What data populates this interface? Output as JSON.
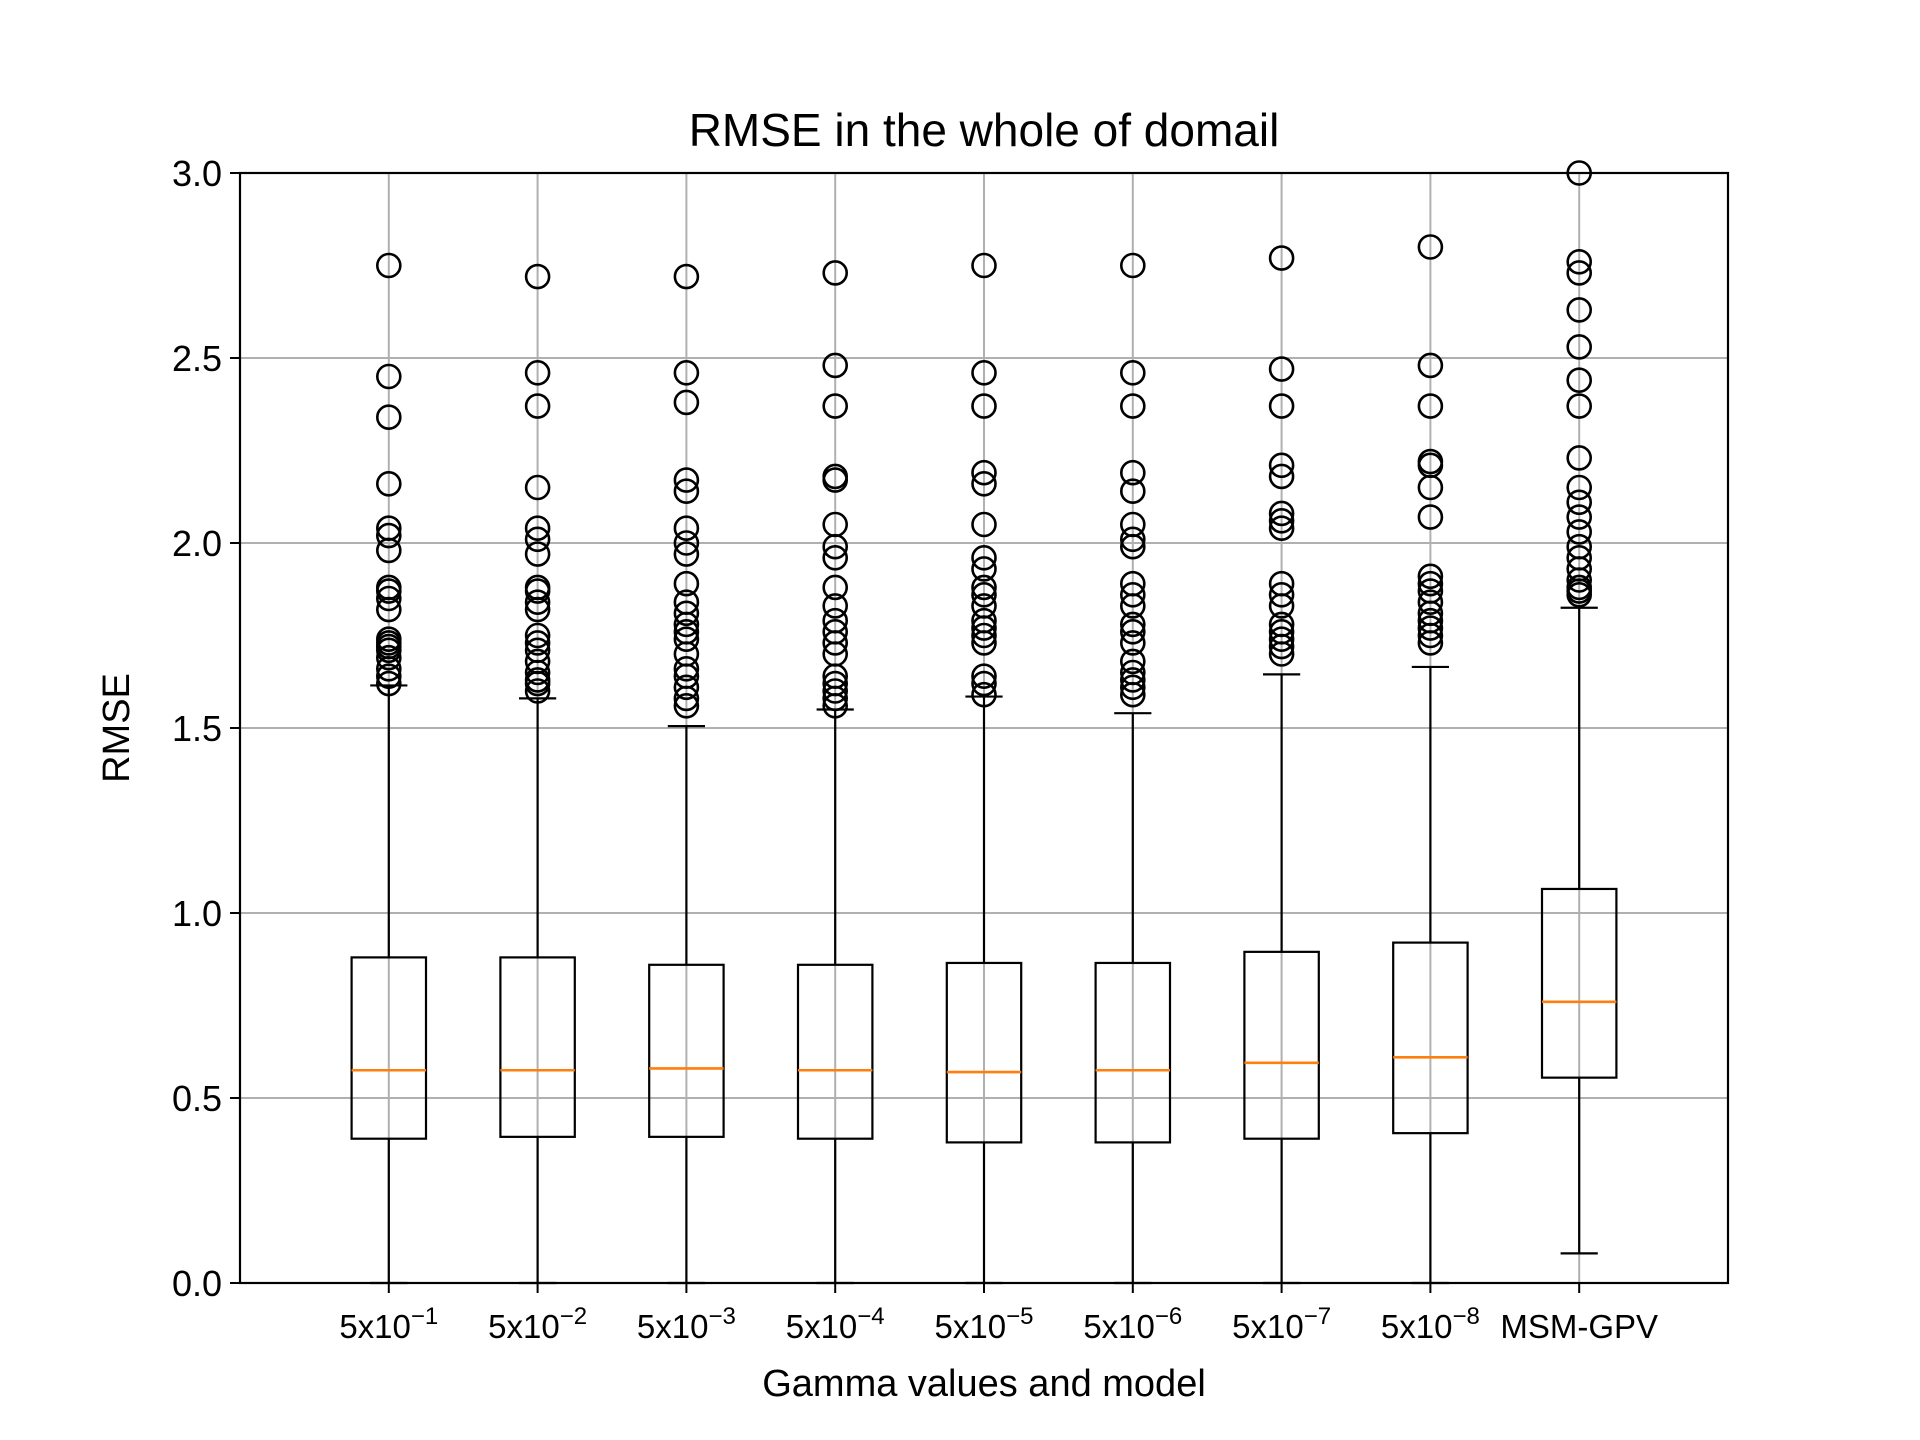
{
  "chart_data": {
    "type": "boxplot",
    "title": "RMSE in the whole of domail",
    "xlabel": "Gamma values and model",
    "ylabel": "RMSE",
    "ylim": [
      0.0,
      3.0
    ],
    "yticks": [
      "0.0",
      "0.5",
      "1.0",
      "1.5",
      "2.0",
      "2.5",
      "3.0"
    ],
    "grid": true,
    "colors": {
      "box": "#000000",
      "median": "#ff7f0e",
      "grid": "#b0b0b0"
    },
    "categories": [
      {
        "base": "5x10",
        "exp": "−1"
      },
      {
        "base": "5x10",
        "exp": "−2"
      },
      {
        "base": "5x10",
        "exp": "−3"
      },
      {
        "base": "5x10",
        "exp": "−4"
      },
      {
        "base": "5x10",
        "exp": "−5"
      },
      {
        "base": "5x10",
        "exp": "−6"
      },
      {
        "base": "5x10",
        "exp": "−7"
      },
      {
        "base": "5x10",
        "exp": "−8"
      },
      {
        "base": "MSM-GPV",
        "exp": ""
      }
    ],
    "boxes": [
      {
        "whislo": 0.0,
        "q1": 0.39,
        "med": 0.575,
        "q3": 0.88,
        "whishi": 1.615,
        "fliers": [
          1.62,
          1.64,
          1.66,
          1.69,
          1.71,
          1.72,
          1.73,
          1.74,
          1.82,
          1.85,
          1.87,
          1.88,
          1.98,
          2.02,
          2.04,
          2.16,
          2.34,
          2.45,
          2.75
        ]
      },
      {
        "whislo": 0.0,
        "q1": 0.395,
        "med": 0.575,
        "q3": 0.88,
        "whishi": 1.58,
        "fliers": [
          1.6,
          1.62,
          1.63,
          1.65,
          1.68,
          1.71,
          1.73,
          1.75,
          1.82,
          1.84,
          1.87,
          1.88,
          1.97,
          2.01,
          2.04,
          2.15,
          2.37,
          2.46,
          2.72
        ]
      },
      {
        "whislo": 0.0,
        "q1": 0.395,
        "med": 0.58,
        "q3": 0.86,
        "whishi": 1.505,
        "fliers": [
          1.56,
          1.58,
          1.61,
          1.64,
          1.66,
          1.7,
          1.74,
          1.76,
          1.78,
          1.81,
          1.84,
          1.89,
          1.97,
          2.0,
          2.04,
          2.14,
          2.17,
          2.38,
          2.46,
          2.72
        ]
      },
      {
        "whislo": 0.0,
        "q1": 0.39,
        "med": 0.575,
        "q3": 0.86,
        "whishi": 1.55,
        "fliers": [
          1.56,
          1.58,
          1.6,
          1.62,
          1.64,
          1.7,
          1.73,
          1.76,
          1.79,
          1.83,
          1.88,
          1.96,
          1.99,
          2.05,
          2.17,
          2.18,
          2.37,
          2.48,
          2.73
        ]
      },
      {
        "whislo": 0.0,
        "q1": 0.38,
        "med": 0.57,
        "q3": 0.865,
        "whishi": 1.585,
        "fliers": [
          1.59,
          1.62,
          1.64,
          1.73,
          1.75,
          1.77,
          1.79,
          1.83,
          1.86,
          1.88,
          1.93,
          1.96,
          2.05,
          2.16,
          2.19,
          2.37,
          2.46,
          2.75
        ]
      },
      {
        "whislo": 0.0,
        "q1": 0.38,
        "med": 0.575,
        "q3": 0.865,
        "whishi": 1.54,
        "fliers": [
          1.59,
          1.61,
          1.63,
          1.65,
          1.68,
          1.73,
          1.76,
          1.78,
          1.83,
          1.86,
          1.89,
          1.99,
          2.01,
          2.05,
          2.14,
          2.19,
          2.37,
          2.46,
          2.75
        ]
      },
      {
        "whislo": 0.0,
        "q1": 0.39,
        "med": 0.595,
        "q3": 0.895,
        "whishi": 1.645,
        "fliers": [
          1.7,
          1.72,
          1.74,
          1.76,
          1.78,
          1.83,
          1.86,
          1.89,
          2.04,
          2.06,
          2.08,
          2.18,
          2.21,
          2.37,
          2.47,
          2.77
        ]
      },
      {
        "whislo": 0.0,
        "q1": 0.405,
        "med": 0.61,
        "q3": 0.92,
        "whishi": 1.665,
        "fliers": [
          1.73,
          1.75,
          1.77,
          1.79,
          1.81,
          1.84,
          1.87,
          1.89,
          1.91,
          2.07,
          2.15,
          2.21,
          2.22,
          2.37,
          2.48,
          2.8
        ]
      },
      {
        "whislo": 0.08,
        "q1": 0.555,
        "med": 0.76,
        "q3": 1.065,
        "whishi": 1.825,
        "fliers": [
          1.86,
          1.87,
          1.88,
          1.9,
          1.93,
          1.96,
          1.99,
          2.03,
          2.07,
          2.11,
          2.15,
          2.23,
          2.37,
          2.44,
          2.53,
          2.63,
          2.73,
          2.76,
          3.0
        ]
      }
    ]
  }
}
